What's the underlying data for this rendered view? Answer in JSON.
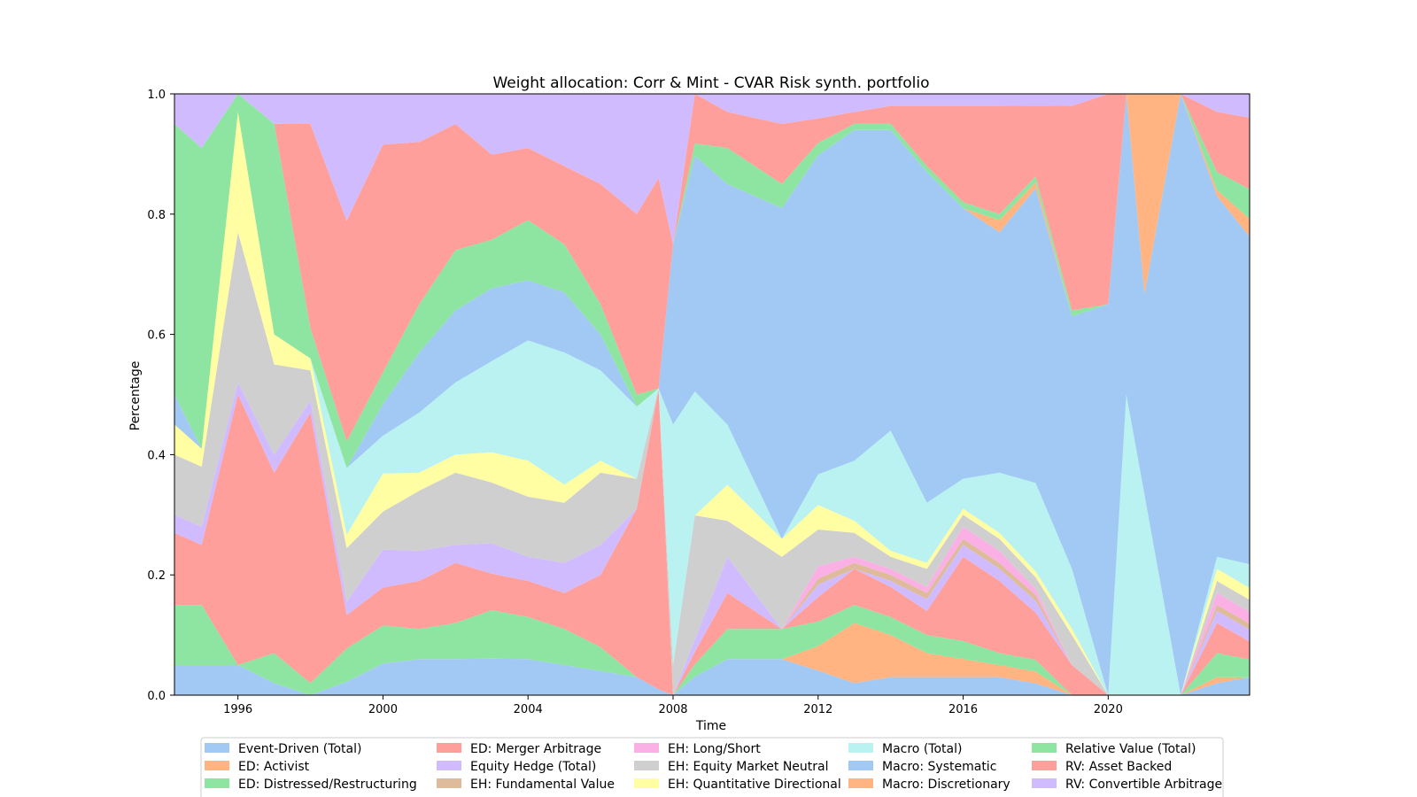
{
  "chart_data": {
    "type": "area",
    "title": "Weight allocation: Corr & Mint - CVAR Risk synth. portfolio",
    "xlabel": "Time",
    "ylabel": "Percentage",
    "xlim": [
      1994.25,
      2023.9
    ],
    "ylim": [
      0.0,
      1.0
    ],
    "x_ticks": [
      "1996",
      "2000",
      "2004",
      "2008",
      "2012",
      "2016",
      "2020"
    ],
    "y_ticks": [
      "0.0",
      "0.2",
      "0.4",
      "0.6",
      "0.8",
      "1.0"
    ],
    "legend_position": "bottom",
    "x": [
      1994.25,
      1995.0,
      1996.0,
      1997.0,
      1998.0,
      1999.0,
      2000.0,
      2001.0,
      2002.0,
      2003.0,
      2004.0,
      2005.0,
      2006.0,
      2007.0,
      2007.6,
      2008.0,
      2008.6,
      2009.5,
      2011.0,
      2012.0,
      2013.0,
      2014.0,
      2015.0,
      2016.0,
      2017.0,
      2018.0,
      2019.0,
      2020.0,
      2020.5,
      2021.0,
      2022.0,
      2023.0,
      2023.9
    ],
    "series": [
      {
        "name": "Event-Driven (Total)",
        "color": "#a1c9f4",
        "values": [
          0.05,
          0.05,
          0.05,
          0.02,
          0.0,
          0.02,
          0.05,
          0.06,
          0.06,
          0.06,
          0.06,
          0.05,
          0.04,
          0.03,
          0.01,
          0.0,
          0.03,
          0.06,
          0.06,
          0.04,
          0.02,
          0.03,
          0.03,
          0.03,
          0.03,
          0.02,
          0.0,
          0.0,
          0.0,
          0.0,
          0.0,
          0.02,
          0.03
        ]
      },
      {
        "name": "ED: Activist",
        "color": "#ffb482",
        "values": [
          0.0,
          0.0,
          0.0,
          0.0,
          0.0,
          0.0,
          0.0,
          0.0,
          0.0,
          0.0,
          0.0,
          0.0,
          0.0,
          0.0,
          0.0,
          0.0,
          0.0,
          0.0,
          0.0,
          0.04,
          0.1,
          0.07,
          0.04,
          0.03,
          0.02,
          0.02,
          0.0,
          0.0,
          0.0,
          0.0,
          0.0,
          0.01,
          0.0
        ]
      },
      {
        "name": "ED: Distressed/Restructuring",
        "color": "#8de5a1",
        "values": [
          0.1,
          0.1,
          0.0,
          0.05,
          0.02,
          0.05,
          0.06,
          0.05,
          0.06,
          0.08,
          0.07,
          0.06,
          0.04,
          0.0,
          0.0,
          0.0,
          0.02,
          0.05,
          0.05,
          0.04,
          0.03,
          0.03,
          0.03,
          0.03,
          0.02,
          0.02,
          0.0,
          0.0,
          0.0,
          0.0,
          0.0,
          0.04,
          0.03
        ]
      },
      {
        "name": "ED: Merger Arbitrage",
        "color": "#ff9f9b",
        "values": [
          0.12,
          0.1,
          0.45,
          0.3,
          0.45,
          0.05,
          0.06,
          0.08,
          0.1,
          0.06,
          0.06,
          0.06,
          0.12,
          0.28,
          0.5,
          0.0,
          0.02,
          0.06,
          0.0,
          0.04,
          0.06,
          0.05,
          0.04,
          0.14,
          0.12,
          0.08,
          0.05,
          0.0,
          0.0,
          0.0,
          0.0,
          0.05,
          0.03
        ]
      },
      {
        "name": "Equity Hedge (Total)",
        "color": "#d0bbff",
        "values": [
          0.03,
          0.03,
          0.02,
          0.03,
          0.02,
          0.02,
          0.06,
          0.05,
          0.03,
          0.05,
          0.04,
          0.05,
          0.05,
          0.0,
          0.0,
          0.0,
          0.02,
          0.06,
          0.0,
          0.02,
          0.0,
          0.01,
          0.02,
          0.02,
          0.02,
          0.02,
          0.0,
          0.0,
          0.0,
          0.0,
          0.0,
          0.02,
          0.02
        ]
      },
      {
        "name": "EH: Fundamental Value",
        "color": "#debb9b",
        "values": [
          0.0,
          0.0,
          0.0,
          0.0,
          0.0,
          0.0,
          0.0,
          0.0,
          0.0,
          0.0,
          0.0,
          0.0,
          0.0,
          0.0,
          0.0,
          0.0,
          0.0,
          0.0,
          0.0,
          0.01,
          0.01,
          0.01,
          0.01,
          0.01,
          0.01,
          0.01,
          0.0,
          0.0,
          0.0,
          0.0,
          0.0,
          0.01,
          0.01
        ]
      },
      {
        "name": "EH: Long/Short",
        "color": "#fab0e4",
        "values": [
          0.0,
          0.0,
          0.0,
          0.0,
          0.0,
          0.0,
          0.0,
          0.0,
          0.0,
          0.0,
          0.0,
          0.0,
          0.0,
          0.0,
          0.0,
          0.0,
          0.0,
          0.0,
          0.0,
          0.02,
          0.01,
          0.01,
          0.01,
          0.02,
          0.02,
          0.01,
          0.0,
          0.0,
          0.0,
          0.0,
          0.0,
          0.02,
          0.02
        ]
      },
      {
        "name": "EH: Equity Market Neutral",
        "color": "#cfcfcf",
        "values": [
          0.1,
          0.1,
          0.25,
          0.15,
          0.05,
          0.08,
          0.06,
          0.1,
          0.12,
          0.1,
          0.1,
          0.1,
          0.12,
          0.05,
          0.0,
          0.05,
          0.2,
          0.06,
          0.12,
          0.06,
          0.04,
          0.02,
          0.03,
          0.02,
          0.02,
          0.02,
          0.05,
          0.0,
          0.0,
          0.0,
          0.0,
          0.02,
          0.02
        ]
      },
      {
        "name": "EH: Quantitative Directional",
        "color": "#fffea3",
        "values": [
          0.05,
          0.03,
          0.2,
          0.05,
          0.02,
          0.02,
          0.06,
          0.03,
          0.03,
          0.05,
          0.06,
          0.03,
          0.02,
          0.0,
          0.0,
          0.0,
          0.0,
          0.06,
          0.03,
          0.04,
          0.02,
          0.01,
          0.01,
          0.01,
          0.01,
          0.01,
          0.01,
          0.0,
          0.0,
          0.0,
          0.0,
          0.02,
          0.02
        ]
      },
      {
        "name": "Macro (Total)",
        "color": "#b9f2f0",
        "values": [
          0.0,
          0.0,
          0.0,
          0.0,
          0.0,
          0.1,
          0.06,
          0.1,
          0.12,
          0.15,
          0.2,
          0.22,
          0.15,
          0.12,
          0.0,
          0.4,
          0.2,
          0.1,
          0.0,
          0.05,
          0.1,
          0.2,
          0.1,
          0.05,
          0.1,
          0.15,
          0.1,
          0.0,
          0.5,
          0.5,
          0.0,
          0.02,
          0.04
        ]
      },
      {
        "name": "Macro: Systematic",
        "color": "#a1c9f4",
        "values": [
          0.05,
          0.0,
          0.0,
          0.0,
          0.0,
          0.0,
          0.05,
          0.1,
          0.12,
          0.12,
          0.1,
          0.1,
          0.06,
          0.0,
          0.0,
          0.3,
          0.38,
          0.4,
          0.55,
          0.52,
          0.55,
          0.5,
          0.55,
          0.45,
          0.4,
          0.5,
          0.42,
          0.65,
          0.5,
          0.5,
          1.0,
          0.6,
          0.55
        ]
      },
      {
        "name": "Macro: Discretionary",
        "color": "#ffb482",
        "values": [
          0.0,
          0.0,
          0.0,
          0.0,
          0.0,
          0.0,
          0.0,
          0.0,
          0.0,
          0.0,
          0.0,
          0.0,
          0.0,
          0.0,
          0.0,
          0.0,
          0.0,
          0.0,
          0.0,
          0.0,
          0.0,
          0.0,
          0.0,
          0.0,
          0.02,
          0.01,
          0.0,
          0.0,
          0.0,
          0.5,
          0.0,
          0.01,
          0.03
        ]
      },
      {
        "name": "Relative Value (Total)",
        "color": "#8de5a1",
        "values": [
          0.45,
          0.5,
          0.03,
          0.35,
          0.05,
          0.04,
          0.05,
          0.08,
          0.1,
          0.08,
          0.1,
          0.08,
          0.05,
          0.02,
          0.0,
          0.0,
          0.02,
          0.06,
          0.04,
          0.02,
          0.01,
          0.01,
          0.01,
          0.01,
          0.01,
          0.01,
          0.01,
          0.0,
          0.0,
          0.0,
          0.0,
          0.03,
          0.05
        ]
      },
      {
        "name": "RV: Asset Backed",
        "color": "#ff9f9b",
        "values": [
          0.0,
          0.0,
          0.0,
          0.0,
          0.34,
          0.33,
          0.36,
          0.27,
          0.21,
          0.14,
          0.12,
          0.13,
          0.2,
          0.3,
          0.35,
          0.0,
          0.08,
          0.06,
          0.1,
          0.04,
          0.02,
          0.03,
          0.1,
          0.16,
          0.18,
          0.12,
          0.34,
          0.35,
          0.0,
          0.0,
          0.0,
          0.1,
          0.12
        ]
      },
      {
        "name": "RV: Convertible Arbitrage",
        "color": "#d0bbff",
        "values": [
          0.05,
          0.09,
          0.0,
          0.05,
          0.05,
          0.19,
          0.08,
          0.08,
          0.05,
          0.1,
          0.09,
          0.12,
          0.15,
          0.2,
          0.14,
          0.25,
          0.0,
          0.03,
          0.05,
          0.04,
          0.03,
          0.02,
          0.02,
          0.02,
          0.02,
          0.02,
          0.02,
          0.0,
          0.0,
          0.0,
          0.0,
          0.03,
          0.04
        ]
      }
    ]
  }
}
